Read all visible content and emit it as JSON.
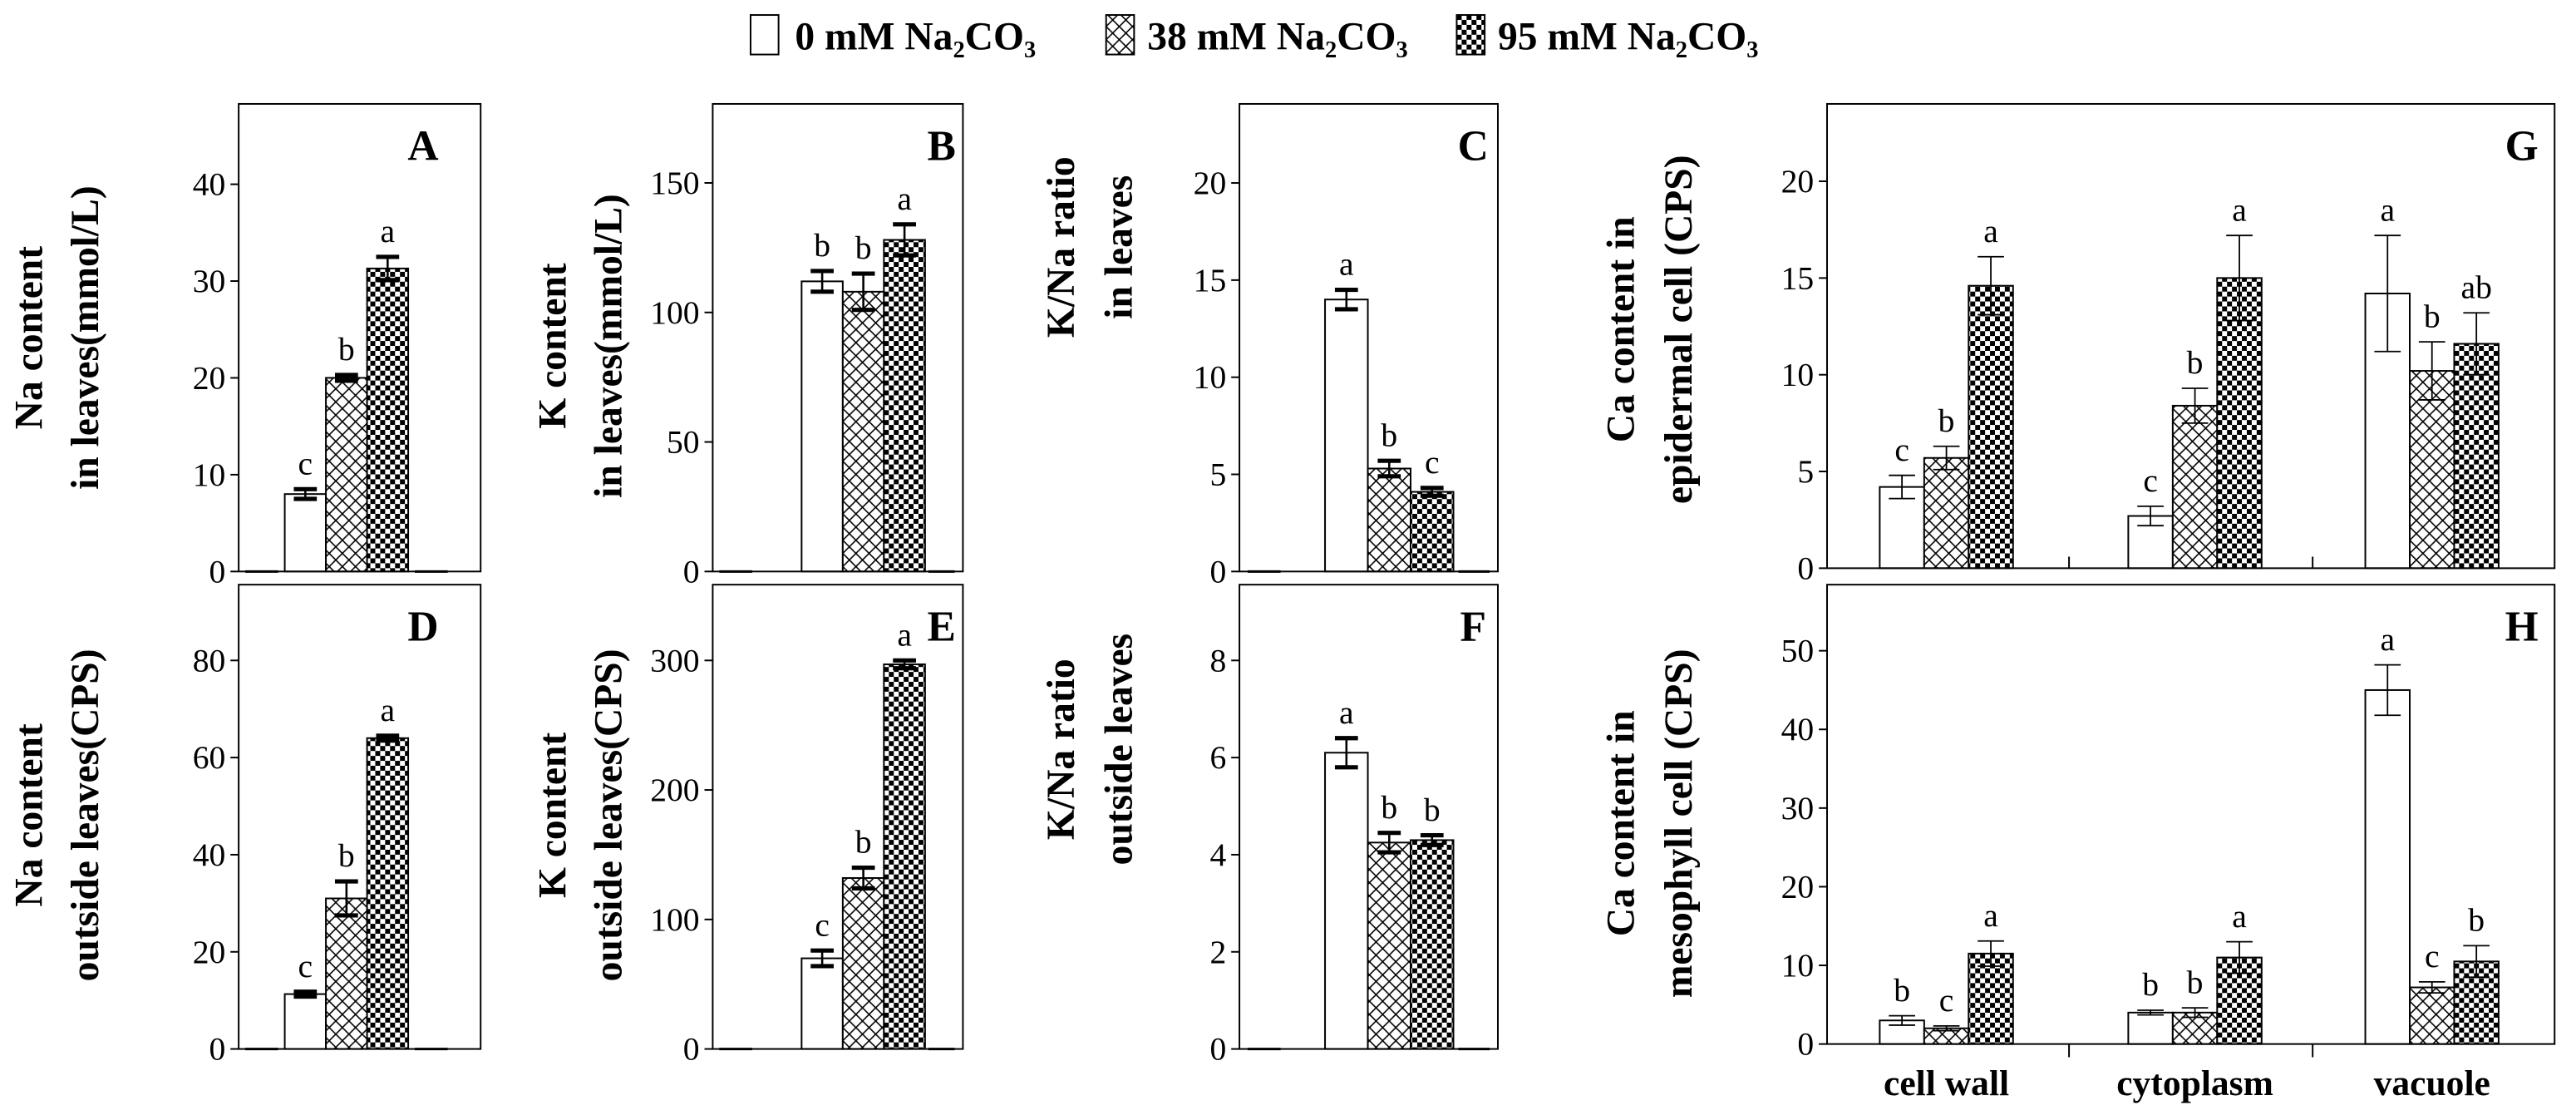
{
  "chart_data": [
    {
      "panel": "A",
      "type": "bar",
      "ylabel": [
        "Na content",
        "in leaves(mmol/L)"
      ],
      "ylim": [
        0,
        48.3
      ],
      "yticks": [
        0,
        10,
        20,
        30,
        40
      ],
      "series": [
        {
          "name": "0 mM Na₂CO₃",
          "values": [
            8.0
          ],
          "errors": [
            0.5
          ],
          "letters": [
            "c"
          ]
        },
        {
          "name": "38 mM Na₂CO₃",
          "values": [
            20.0
          ],
          "errors": [
            0.3
          ],
          "letters": [
            "b"
          ]
        },
        {
          "name": "95 mM Na₂CO₃",
          "values": [
            31.3
          ],
          "errors": [
            1.2
          ],
          "letters": [
            "a"
          ]
        }
      ]
    },
    {
      "panel": "B",
      "type": "bar",
      "ylabel": [
        "K content",
        "in leaves(mmol/L)"
      ],
      "ylim": [
        0,
        180.5
      ],
      "yticks": [
        0,
        50,
        100,
        150
      ],
      "series": [
        {
          "name": "0 mM Na₂CO₃",
          "values": [
            112
          ],
          "errors": [
            4
          ],
          "letters": [
            "b"
          ]
        },
        {
          "name": "38 mM Na₂CO₃",
          "values": [
            108
          ],
          "errors": [
            7
          ],
          "letters": [
            "b"
          ]
        },
        {
          "name": "95 mM Na₂CO₃",
          "values": [
            128
          ],
          "errors": [
            6
          ],
          "letters": [
            "a"
          ]
        }
      ]
    },
    {
      "panel": "C",
      "type": "bar",
      "ylabel": [
        "K/Na ratio",
        "in leaves"
      ],
      "ylim": [
        0,
        24.07
      ],
      "yticks": [
        0,
        5,
        10,
        15,
        20
      ],
      "series": [
        {
          "name": "0 mM Na₂CO₃",
          "values": [
            14.0
          ],
          "errors": [
            0.5
          ],
          "letters": [
            "a"
          ]
        },
        {
          "name": "38 mM Na₂CO₃",
          "values": [
            5.3
          ],
          "errors": [
            0.4
          ],
          "letters": [
            "b"
          ]
        },
        {
          "name": "95 mM Na₂CO₃",
          "values": [
            4.1
          ],
          "errors": [
            0.2
          ],
          "letters": [
            "c"
          ]
        }
      ]
    },
    {
      "panel": "D",
      "type": "bar",
      "ylabel": [
        "Na content",
        "outside leaves(CPS)"
      ],
      "ylim": [
        0,
        95.6
      ],
      "yticks": [
        0,
        20,
        40,
        60,
        80
      ],
      "series": [
        {
          "name": "0 mM Na₂CO₃",
          "values": [
            11.3
          ],
          "errors": [
            0.5
          ],
          "letters": [
            "c"
          ]
        },
        {
          "name": "38 mM Na₂CO₃",
          "values": [
            31.0
          ],
          "errors": [
            3.5
          ],
          "letters": [
            "b"
          ]
        },
        {
          "name": "95 mM Na₂CO₃",
          "values": [
            64.0
          ],
          "errors": [
            0.5
          ],
          "letters": [
            "a"
          ]
        }
      ]
    },
    {
      "panel": "E",
      "type": "bar",
      "ylabel": [
        "K content",
        "outside leaves(CPS)"
      ],
      "ylim": [
        0,
        358.5
      ],
      "yticks": [
        0,
        100,
        200,
        300
      ],
      "series": [
        {
          "name": "0 mM Na₂CO₃",
          "values": [
            70
          ],
          "errors": [
            6
          ],
          "letters": [
            "c"
          ]
        },
        {
          "name": "38 mM Na₂CO₃",
          "values": [
            132
          ],
          "errors": [
            8
          ],
          "letters": [
            "b"
          ]
        },
        {
          "name": "95 mM Na₂CO₃",
          "values": [
            297
          ],
          "errors": [
            3
          ],
          "letters": [
            "a"
          ]
        }
      ]
    },
    {
      "panel": "F",
      "type": "bar",
      "ylabel": [
        "K/Na ratio",
        "outside leaves"
      ],
      "ylim": [
        0,
        9.56
      ],
      "yticks": [
        0,
        2,
        4,
        6,
        8
      ],
      "series": [
        {
          "name": "0 mM Na₂CO₃",
          "values": [
            6.1
          ],
          "errors": [
            0.3
          ],
          "letters": [
            "a"
          ]
        },
        {
          "name": "38 mM Na₂CO₃",
          "values": [
            4.25
          ],
          "errors": [
            0.2
          ],
          "letters": [
            "b"
          ]
        },
        {
          "name": "95 mM Na₂CO₃",
          "values": [
            4.3
          ],
          "errors": [
            0.1
          ],
          "letters": [
            "b"
          ]
        }
      ]
    },
    {
      "panel": "G",
      "type": "bar",
      "ylabel": [
        "Ca content in",
        "epidermal cell (CPS)"
      ],
      "ylim": [
        0,
        24.0
      ],
      "yticks": [
        0,
        5,
        10,
        15,
        20
      ],
      "series": [
        {
          "name": "0 mM Na₂CO₃",
          "values": [
            4.2,
            2.7,
            14.2
          ],
          "errors": [
            0.6,
            0.5,
            3.0
          ],
          "letters": [
            "c",
            "c",
            "a"
          ]
        },
        {
          "name": "38 mM Na₂CO₃",
          "values": [
            5.7,
            8.4,
            10.2
          ],
          "errors": [
            0.6,
            0.9,
            1.5
          ],
          "letters": [
            "b",
            "b",
            "b"
          ]
        },
        {
          "name": "95 mM Na₂CO₃",
          "values": [
            14.6,
            15.0,
            11.6
          ],
          "errors": [
            1.5,
            2.2,
            1.6
          ],
          "letters": [
            "a",
            "a",
            "ab"
          ]
        }
      ]
    },
    {
      "panel": "H",
      "type": "bar",
      "ylabel": [
        "Ca content in",
        "mesophyll cell (CPS)"
      ],
      "ylim": [
        0,
        58.4
      ],
      "yticks": [
        0,
        10,
        20,
        30,
        40,
        50
      ],
      "categories": [
        "cell wall",
        "cytoplasm",
        "vacuole"
      ],
      "series": [
        {
          "name": "0 mM Na₂CO₃",
          "values": [
            3.0,
            4.0,
            45.0
          ],
          "errors": [
            0.6,
            0.3,
            3.2
          ],
          "letters": [
            "b",
            "b",
            "a"
          ]
        },
        {
          "name": "38 mM Na₂CO₃",
          "values": [
            2.0,
            4.0,
            7.2
          ],
          "errors": [
            0.3,
            0.6,
            0.7
          ],
          "letters": [
            "c",
            "b",
            "c"
          ]
        },
        {
          "name": "95 mM Na₂CO₃",
          "values": [
            11.5,
            11.0,
            10.5
          ],
          "errors": [
            1.6,
            2.0,
            2.0
          ],
          "letters": [
            "a",
            "a",
            "b"
          ]
        }
      ]
    }
  ]
}
